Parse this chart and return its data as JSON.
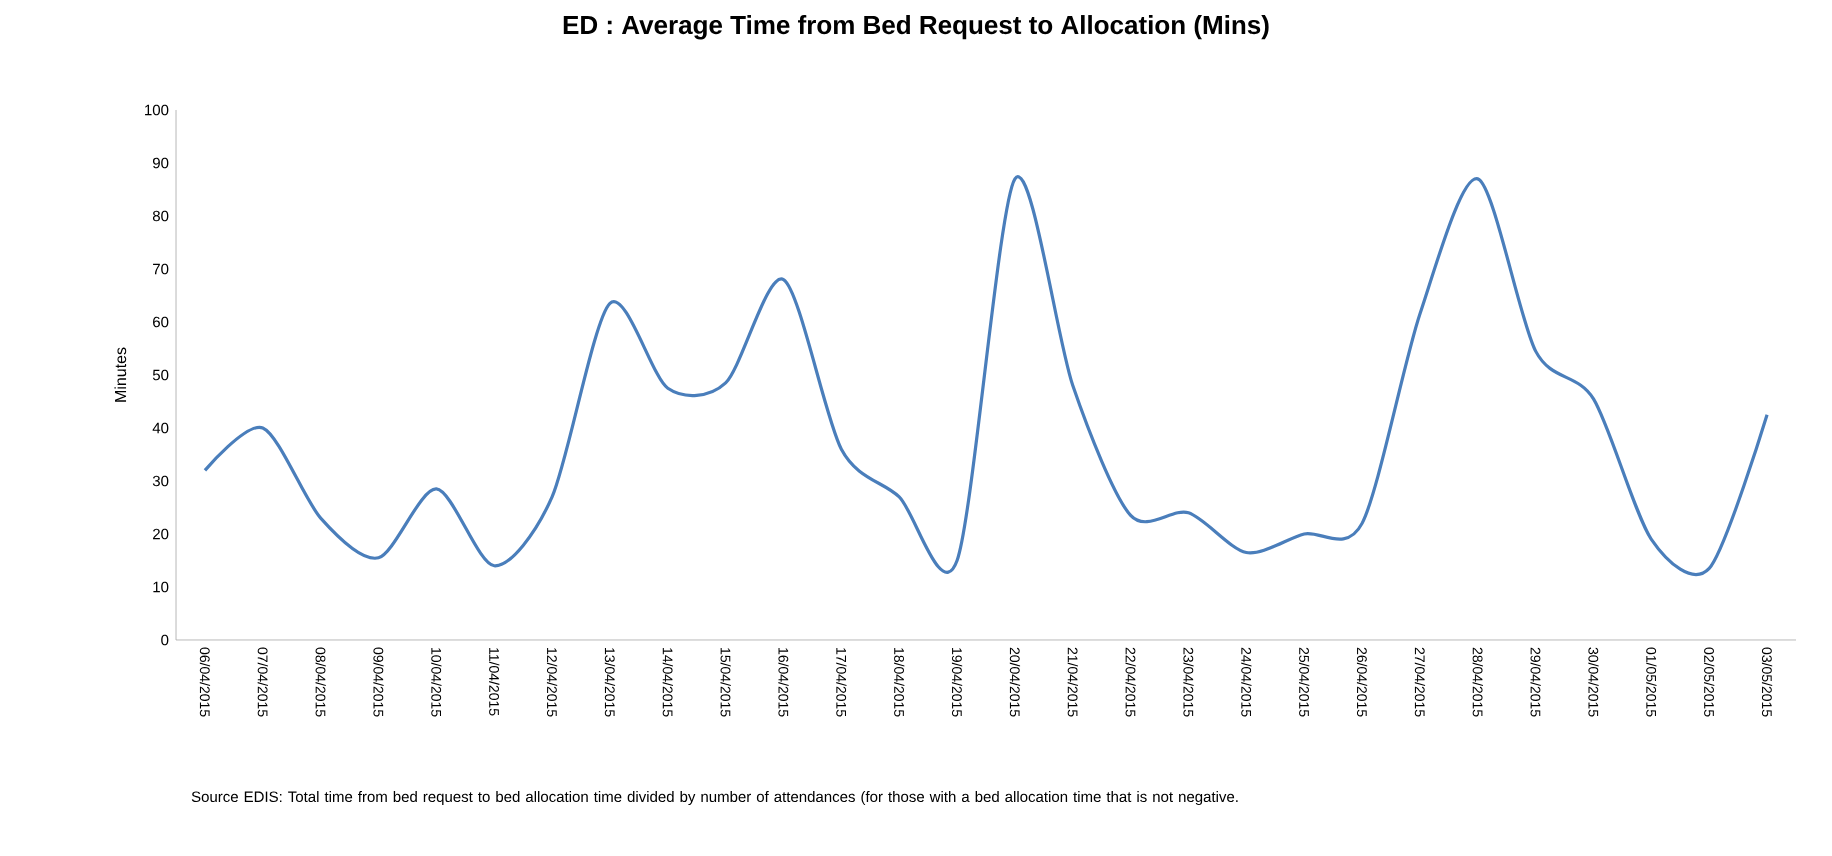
{
  "chart_data": {
    "type": "line",
    "title": "ED  :  Average Time from Bed Request to Allocation (Mins)",
    "ylabel": "Minutes",
    "categories": [
      "06/04/2015",
      "07/04/2015",
      "08/04/2015",
      "09/04/2015",
      "10/04/2015",
      "11/04/2015",
      "12/04/2015",
      "13/04/2015",
      "14/04/2015",
      "15/04/2015",
      "16/04/2015",
      "17/04/2015",
      "18/04/2015",
      "19/04/2015",
      "20/04/2015",
      "21/04/2015",
      "22/04/2015",
      "23/04/2015",
      "24/04/2015",
      "25/04/2015",
      "26/04/2015",
      "27/04/2015",
      "28/04/2015",
      "29/04/2015",
      "30/04/2015",
      "01/05/2015",
      "02/05/2015",
      "03/05/2015"
    ],
    "series": [
      {
        "color": "#4a7ebb",
        "values": [
          32,
          40,
          23,
          15.5,
          28.5,
          14,
          27,
          63.5,
          47.5,
          48.5,
          68,
          36,
          27,
          15,
          87,
          48,
          23.5,
          24,
          16.5,
          20,
          22,
          61.5,
          87,
          54.5,
          45.5,
          19,
          13.5,
          42.5
        ]
      }
    ],
    "ylim": [
      0,
      100
    ],
    "yticks": [
      0,
      10,
      20,
      30,
      40,
      50,
      60,
      70,
      80,
      90,
      100
    ],
    "grid": false,
    "legend": false,
    "marker": "none",
    "line_style": "solid",
    "annotations": [
      "Source EDIS:  Total time from bed request to bed allocation time divided  by number of attendances (for those with a bed allocation time that is not negative."
    ]
  }
}
